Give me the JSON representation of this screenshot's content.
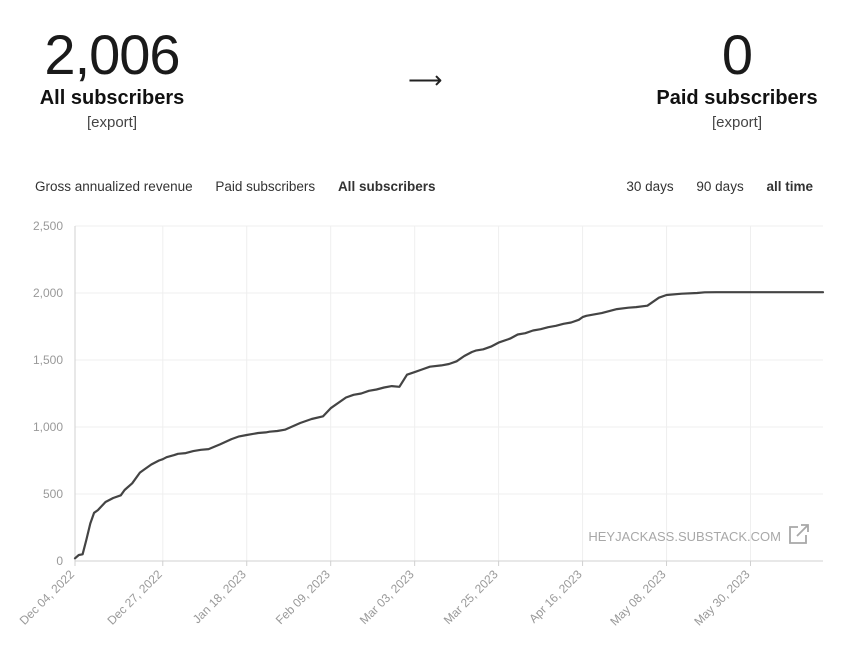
{
  "stats": {
    "all": {
      "number": "2,006",
      "label": "All subscribers",
      "export": "[export]"
    },
    "arrow": "⟶",
    "paid": {
      "number": "0",
      "label": "Paid subscribers",
      "export": "[export]"
    }
  },
  "tabs": {
    "metrics": [
      "Gross annualized revenue",
      "Paid subscribers",
      "All subscribers"
    ],
    "active_metric": "All subscribers",
    "ranges": [
      "30 days",
      "90 days",
      "all time"
    ],
    "active_range": "all time"
  },
  "chart_data": {
    "type": "line",
    "title": "",
    "xlabel": "",
    "ylabel": "",
    "ylim": [
      0,
      2500
    ],
    "yticks": [
      "0",
      "500",
      "1,000",
      "1,500",
      "2,000",
      "2,500"
    ],
    "ytick_values": [
      0,
      500,
      1000,
      1500,
      2000,
      2500
    ],
    "xlim": [
      "2022-12-04",
      "2023-06-18"
    ],
    "xticks": [
      "Dec 04, 2022",
      "Dec 27, 2022",
      "Jan 18, 2023",
      "Feb 09, 2023",
      "Mar 03, 2023",
      "Mar 25, 2023",
      "Apr 16, 2023",
      "May 08, 2023",
      "May 30, 2023"
    ],
    "xtick_dates": [
      "2022-12-04",
      "2022-12-27",
      "2023-01-18",
      "2023-02-09",
      "2023-03-03",
      "2023-03-25",
      "2023-04-16",
      "2023-05-08",
      "2023-05-30"
    ],
    "grid": true,
    "line_color": "#444444",
    "watermark": "HEYJACKASS.SUBSTACK.COM",
    "series": [
      {
        "x": [
          "2022-12-04",
          "2022-12-05",
          "2022-12-06",
          "2022-12-07",
          "2022-12-08",
          "2022-12-09",
          "2022-12-10",
          "2022-12-12",
          "2022-12-14",
          "2022-12-16",
          "2022-12-17",
          "2022-12-19",
          "2022-12-21",
          "2022-12-22",
          "2022-12-24",
          "2022-12-26",
          "2022-12-27",
          "2022-12-28",
          "2022-12-30",
          "2022-12-31",
          "2023-01-02",
          "2023-01-04",
          "2023-01-06",
          "2023-01-08",
          "2023-01-11",
          "2023-01-14",
          "2023-01-16",
          "2023-01-18",
          "2023-01-21",
          "2023-01-23",
          "2023-01-24",
          "2023-01-26",
          "2023-01-28",
          "2023-02-01",
          "2023-02-04",
          "2023-02-07",
          "2023-02-09",
          "2023-02-13",
          "2023-02-15",
          "2023-02-17",
          "2023-02-19",
          "2023-02-21",
          "2023-02-23",
          "2023-02-25",
          "2023-02-27",
          "2023-03-01",
          "2023-03-03",
          "2023-03-05",
          "2023-03-07",
          "2023-03-10",
          "2023-03-12",
          "2023-03-14",
          "2023-03-16",
          "2023-03-18",
          "2023-03-19",
          "2023-03-21",
          "2023-03-23",
          "2023-03-25",
          "2023-03-28",
          "2023-03-30",
          "2023-04-01",
          "2023-04-03",
          "2023-04-05",
          "2023-04-07",
          "2023-04-09",
          "2023-04-11",
          "2023-04-13",
          "2023-04-15",
          "2023-04-16",
          "2023-04-17",
          "2023-04-19",
          "2023-04-21",
          "2023-04-23",
          "2023-04-25",
          "2023-04-28",
          "2023-04-30",
          "2023-05-03",
          "2023-05-06",
          "2023-05-08",
          "2023-05-12",
          "2023-05-16",
          "2023-05-18",
          "2023-05-21",
          "2023-05-24",
          "2023-05-27",
          "2023-05-29",
          "2023-05-30",
          "2023-06-01",
          "2023-06-03",
          "2023-06-05",
          "2023-06-07",
          "2023-06-11",
          "2023-06-15",
          "2023-06-18"
        ],
        "y": [
          20,
          45,
          50,
          160,
          280,
          360,
          380,
          440,
          470,
          490,
          530,
          580,
          660,
          680,
          720,
          750,
          760,
          775,
          790,
          800,
          805,
          820,
          830,
          835,
          870,
          910,
          930,
          940,
          955,
          960,
          965,
          970,
          980,
          1030,
          1060,
          1080,
          1140,
          1220,
          1240,
          1250,
          1270,
          1280,
          1295,
          1305,
          1300,
          1390,
          1410,
          1430,
          1450,
          1460,
          1470,
          1490,
          1530,
          1560,
          1570,
          1580,
          1600,
          1630,
          1660,
          1690,
          1700,
          1720,
          1730,
          1745,
          1755,
          1770,
          1780,
          1800,
          1820,
          1830,
          1840,
          1850,
          1865,
          1880,
          1890,
          1895,
          1905,
          1965,
          1985,
          1995,
          2000,
          2005,
          2006,
          2006,
          2006,
          2006,
          2006,
          2006,
          2006,
          2006,
          2006,
          2006,
          2006,
          2006
        ]
      }
    ]
  }
}
